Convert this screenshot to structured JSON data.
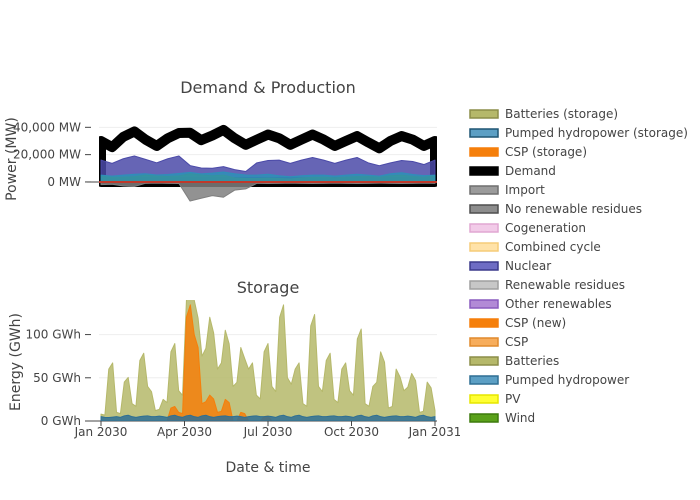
{
  "chart_data": [
    {
      "type": "area",
      "title": "Demand & Production",
      "ylabel": "Power (MW)",
      "xlabel": "",
      "ylim": [
        -22000,
        60000
      ],
      "yticks": [
        {
          "v": 0,
          "label": "0 MW"
        },
        {
          "v": 20000,
          "label": "20,000 MW"
        },
        {
          "v": 40000,
          "label": "40,000 MW"
        }
      ],
      "grid": true,
      "series": [
        {
          "name": "Demand",
          "color": "#000000",
          "values": [
            30000,
            33000,
            31000,
            32000,
            36000,
            34000,
            32000,
            31000,
            32000,
            31000,
            31000,
            30000,
            29000,
            30000,
            31000,
            30000
          ]
        },
        {
          "name": "Nuclear",
          "color": "#4b4aa8",
          "values": [
            16000,
            17000,
            16500,
            17000,
            12000,
            10000,
            9000,
            14000,
            16000,
            16000,
            16000,
            16000,
            14000,
            14000,
            15000,
            16000
          ]
        },
        {
          "name": "Wind",
          "color": "#5aa11a",
          "values": [
            4000,
            3500,
            5000,
            4000,
            6000,
            4500,
            3000,
            2500,
            2500,
            3000,
            3500,
            3500,
            4000,
            4500,
            4000,
            4500
          ]
        },
        {
          "name": "Pumped hydropower",
          "color": "#2e8fb8",
          "values": [
            5000,
            5000,
            6000,
            5500,
            7000,
            6500,
            6000,
            5000,
            4500,
            4500,
            5000,
            5000,
            5000,
            6000,
            5500,
            5000
          ]
        },
        {
          "name": "Import",
          "color": "#7f7f7f",
          "values": [
            -2000,
            -3000,
            -1000,
            -1000,
            -14000,
            -10000,
            -6000,
            -1000,
            -1000,
            -1000,
            -1000,
            -1000,
            -1000,
            -1000,
            -1000,
            -1000
          ]
        }
      ]
    },
    {
      "type": "area",
      "title": "Storage",
      "ylabel": "Energy (GWh)",
      "xlabel": "Date & time",
      "ylim": [
        0,
        140
      ],
      "yticks": [
        {
          "v": 0,
          "label": "0 GWh"
        },
        {
          "v": 50,
          "label": "50 GWh"
        },
        {
          "v": 100,
          "label": "100 GWh"
        }
      ],
      "xticks": [
        "Jan 2030",
        "Apr 2030",
        "Jul 2030",
        "Oct 2030",
        "Jan 2031"
      ],
      "grid": true,
      "series": [
        {
          "name": "Batteries (storage)",
          "color": "#b5b86a",
          "values": [
            8,
            60,
            10,
            45,
            20,
            70,
            40,
            12,
            25,
            80,
            35,
            140,
            140,
            75,
            120,
            60,
            105,
            40,
            85,
            60,
            30,
            80,
            40,
            120,
            50,
            60,
            20,
            110,
            40,
            70,
            25,
            60,
            35,
            95,
            20,
            40,
            80,
            15,
            60,
            35,
            55,
            10,
            45,
            12
          ]
        },
        {
          "name": "CSP (storage)",
          "color": "#f57f0b",
          "values": [
            0,
            0,
            0,
            0,
            0,
            0,
            0,
            0,
            0,
            15,
            10,
            120,
            100,
            20,
            30,
            10,
            25,
            0,
            10,
            0,
            0,
            5,
            0,
            0,
            0,
            0,
            0,
            0,
            0,
            0,
            0,
            0,
            0,
            0,
            0,
            0,
            0,
            0,
            0,
            0,
            0,
            0,
            0,
            0
          ]
        },
        {
          "name": "Pumped hydropower (storage)",
          "color": "#2e6f94",
          "values": [
            5,
            4,
            5,
            6,
            5,
            5,
            6,
            5,
            5,
            6,
            5,
            6,
            5,
            6,
            5,
            5,
            6,
            5,
            5,
            5,
            6,
            5,
            5,
            6,
            5,
            6,
            5,
            5,
            6,
            5,
            6,
            5,
            5,
            6,
            5,
            6,
            5,
            5,
            6,
            5,
            5,
            6,
            5,
            5
          ]
        }
      ]
    }
  ],
  "legend": {
    "placement": "right",
    "items": [
      {
        "name": "Batteries (storage)",
        "color": "#b5b86a",
        "edge": "#8c8e48"
      },
      {
        "name": "Pumped hydropower (storage)",
        "color": "#5c9fc4",
        "edge": "#1e5573"
      },
      {
        "name": "CSP (storage)",
        "color": "#f57f0b",
        "edge": "#f57f0b"
      },
      {
        "name": "Demand",
        "color": "#000000",
        "edge": "#000000"
      },
      {
        "name": "Import",
        "color": "#9b9b9b",
        "edge": "#6f6f6f"
      },
      {
        "name": "No renewable residues",
        "color": "#8d8d8d",
        "edge": "#4e4e4e"
      },
      {
        "name": "Cogeneration",
        "color": "#f2cbe8",
        "edge": "#e1a7d2"
      },
      {
        "name": "Combined cycle",
        "color": "#ffe2a8",
        "edge": "#f5cc78"
      },
      {
        "name": "Nuclear",
        "color": "#6e6cc4",
        "edge": "#3b3a8c"
      },
      {
        "name": "Renewable residues",
        "color": "#c7c7c7",
        "edge": "#9f9f9f"
      },
      {
        "name": "Other renewables",
        "color": "#b28ad6",
        "edge": "#8a5bbf"
      },
      {
        "name": "CSP (new)",
        "color": "#f57f0b",
        "edge": "#f57f0b"
      },
      {
        "name": "CSP",
        "color": "#f7ad5c",
        "edge": "#e08a2d"
      },
      {
        "name": "Batteries",
        "color": "#b5b86a",
        "edge": "#8c8e48"
      },
      {
        "name": "Pumped hydropower",
        "color": "#5c9fc4",
        "edge": "#2e6f94"
      },
      {
        "name": "PV",
        "color": "#ffff33",
        "edge": "#e6e600"
      },
      {
        "name": "Wind",
        "color": "#5aa11a",
        "edge": "#3d7a0c"
      }
    ]
  },
  "colors": {
    "demand": "#000000",
    "nuclear": "#4b4aa8",
    "wind": "#5aa11a",
    "hydro": "#2e8fb8",
    "import": "#555555",
    "zero_line": "#c0392b",
    "grid": "#eeeeee"
  }
}
